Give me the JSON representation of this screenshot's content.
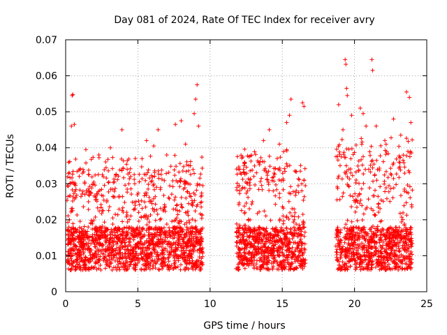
{
  "chart_data": {
    "type": "scatter",
    "title": "Day 081 of 2024, Rate Of TEC Index for receiver avry",
    "xlabel": "GPS time / hours",
    "ylabel": "ROTI / TECUs",
    "xlim": [
      0,
      25
    ],
    "ylim": [
      0,
      0.07
    ],
    "xticks": [
      0,
      5,
      10,
      15,
      20,
      25
    ],
    "xtick_labels": [
      "0",
      "5",
      "10",
      "15",
      "20",
      "25"
    ],
    "yticks": [
      0,
      0.01,
      0.02,
      0.03,
      0.04,
      0.05,
      0.06,
      0.07
    ],
    "ytick_labels": [
      "0",
      "0.01",
      "0.02",
      "0.03",
      "0.04",
      "0.05",
      "0.06",
      "0.07"
    ],
    "grid": true,
    "marker": "plus",
    "color": "#ff0000",
    "coverage_segments": [
      {
        "start": 0.1,
        "end": 9.5,
        "typical_low": 0.005,
        "typical_high": 0.03
      },
      {
        "start": 11.8,
        "end": 16.6,
        "typical_low": 0.005,
        "typical_high": 0.032
      },
      {
        "start": 18.7,
        "end": 24.0,
        "typical_low": 0.005,
        "typical_high": 0.035
      }
    ],
    "notable_points": [
      {
        "x": 0.45,
        "y": 0.0545
      },
      {
        "x": 0.5,
        "y": 0.0548
      },
      {
        "x": 0.4,
        "y": 0.046
      },
      {
        "x": 0.6,
        "y": 0.0465
      },
      {
        "x": 1.4,
        "y": 0.0395
      },
      {
        "x": 2.3,
        "y": 0.038
      },
      {
        "x": 3.1,
        "y": 0.04
      },
      {
        "x": 3.9,
        "y": 0.045
      },
      {
        "x": 4.5,
        "y": 0.032
      },
      {
        "x": 5.6,
        "y": 0.042
      },
      {
        "x": 6.1,
        "y": 0.0405
      },
      {
        "x": 6.4,
        "y": 0.045
      },
      {
        "x": 7.0,
        "y": 0.038
      },
      {
        "x": 7.6,
        "y": 0.0465
      },
      {
        "x": 8.0,
        "y": 0.0475
      },
      {
        "x": 8.3,
        "y": 0.041
      },
      {
        "x": 8.9,
        "y": 0.0495
      },
      {
        "x": 9.0,
        "y": 0.0535
      },
      {
        "x": 9.1,
        "y": 0.0575
      },
      {
        "x": 9.2,
        "y": 0.046
      },
      {
        "x": 12.1,
        "y": 0.033
      },
      {
        "x": 12.6,
        "y": 0.028
      },
      {
        "x": 13.7,
        "y": 0.042
      },
      {
        "x": 14.1,
        "y": 0.045
      },
      {
        "x": 14.8,
        "y": 0.041
      },
      {
        "x": 15.3,
        "y": 0.047
      },
      {
        "x": 15.5,
        "y": 0.049
      },
      {
        "x": 15.6,
        "y": 0.0535
      },
      {
        "x": 16.4,
        "y": 0.0525
      },
      {
        "x": 16.5,
        "y": 0.0515
      },
      {
        "x": 18.9,
        "y": 0.052
      },
      {
        "x": 19.2,
        "y": 0.045
      },
      {
        "x": 19.35,
        "y": 0.0645
      },
      {
        "x": 19.4,
        "y": 0.0632
      },
      {
        "x": 19.45,
        "y": 0.0565
      },
      {
        "x": 19.5,
        "y": 0.0545
      },
      {
        "x": 19.8,
        "y": 0.049
      },
      {
        "x": 20.4,
        "y": 0.051
      },
      {
        "x": 20.6,
        "y": 0.0495
      },
      {
        "x": 20.8,
        "y": 0.046
      },
      {
        "x": 21.2,
        "y": 0.0645
      },
      {
        "x": 21.25,
        "y": 0.0615
      },
      {
        "x": 21.5,
        "y": 0.046
      },
      {
        "x": 22.1,
        "y": 0.042
      },
      {
        "x": 22.7,
        "y": 0.048
      },
      {
        "x": 23.2,
        "y": 0.0435
      },
      {
        "x": 23.6,
        "y": 0.0555
      },
      {
        "x": 23.8,
        "y": 0.054
      },
      {
        "x": 23.9,
        "y": 0.047
      }
    ]
  }
}
